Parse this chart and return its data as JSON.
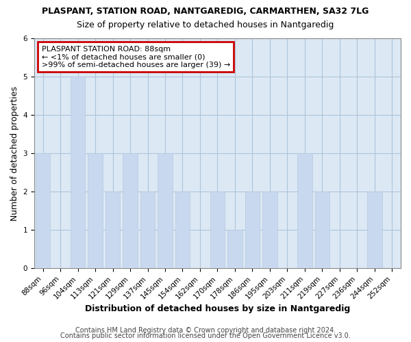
{
  "title": "PLASPANT, STATION ROAD, NANTGAREDIG, CARMARTHEN, SA32 7LG",
  "subtitle": "Size of property relative to detached houses in Nantgaredig",
  "xlabel": "Distribution of detached houses by size in Nantgaredig",
  "ylabel": "Number of detached properties",
  "bar_labels": [
    "88sqm",
    "96sqm",
    "104sqm",
    "113sqm",
    "121sqm",
    "129sqm",
    "137sqm",
    "145sqm",
    "154sqm",
    "162sqm",
    "170sqm",
    "178sqm",
    "186sqm",
    "195sqm",
    "203sqm",
    "211sqm",
    "219sqm",
    "227sqm",
    "236sqm",
    "244sqm",
    "252sqm"
  ],
  "bar_values": [
    3,
    0,
    5,
    3,
    2,
    3,
    2,
    3,
    2,
    0,
    2,
    1,
    2,
    2,
    0,
    3,
    2,
    0,
    0,
    2,
    0
  ],
  "bar_color": "#c8d9ef",
  "bar_edge_color": "#b8c9df",
  "ylim": [
    0,
    6
  ],
  "yticks": [
    0,
    1,
    2,
    3,
    4,
    5,
    6
  ],
  "annotation_title": "PLASPANT STATION ROAD: 88sqm",
  "annotation_line1": "← <1% of detached houses are smaller (0)",
  "annotation_line2": ">99% of semi-detached houses are larger (39) →",
  "annotation_box_facecolor": "#ffffff",
  "annotation_border_color": "#cc0000",
  "footer_line1": "Contains HM Land Registry data © Crown copyright and database right 2024.",
  "footer_line2": "Contains public sector information licensed under the Open Government Licence v3.0.",
  "grid_color": "#adc4d9",
  "plot_bg_color": "#dce9f5",
  "figure_bg_color": "#ffffff",
  "title_fontsize": 9,
  "subtitle_fontsize": 9,
  "axis_label_fontsize": 9,
  "tick_fontsize": 7.5,
  "annotation_fontsize": 8,
  "footer_fontsize": 7
}
